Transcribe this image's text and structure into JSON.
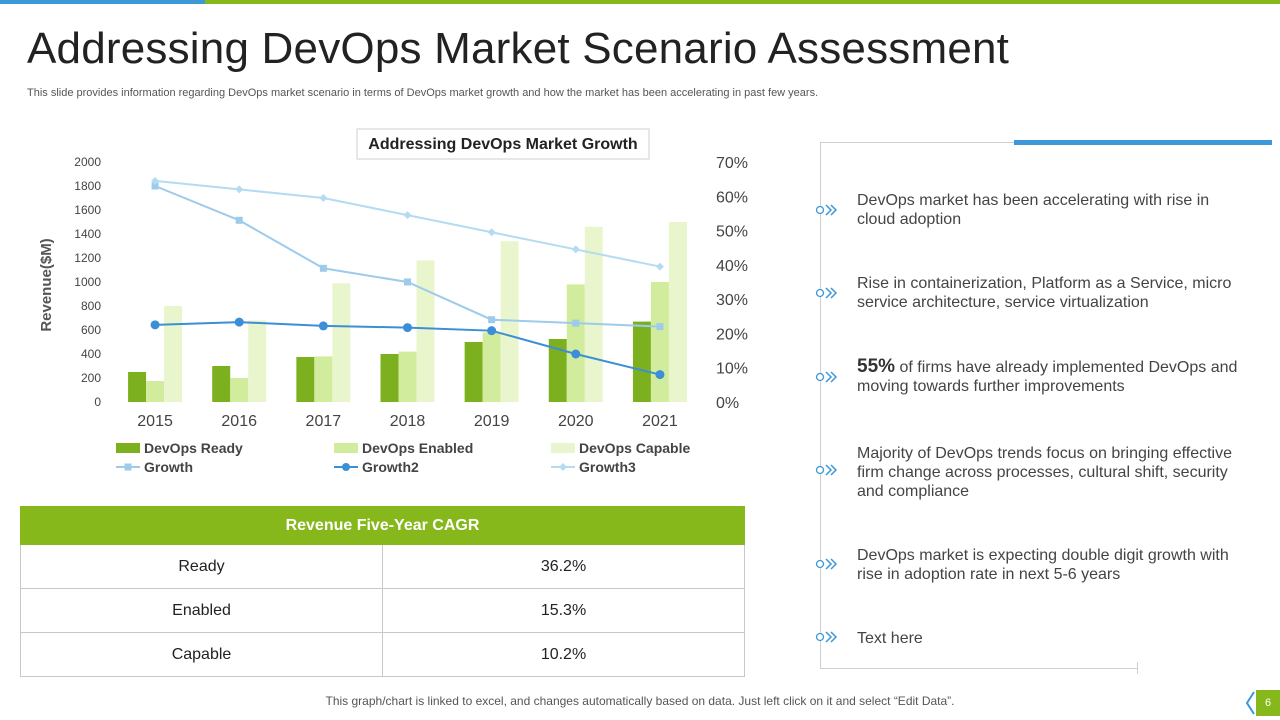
{
  "slide": {
    "title": "Addressing DevOps Market Scenario Assessment",
    "subtitle": "This slide provides information regarding DevOps market scenario in terms of DevOps market growth and how the market has been accelerating in past few years.",
    "footer": "This graph/chart is linked to excel, and changes automatically based on data. Just left click on it and select “Edit Data”.",
    "page_number": "6"
  },
  "colors": {
    "accent_green": "#86b81c",
    "accent_blue": "#3c98d8",
    "devops_ready": "#7cb01e",
    "devops_enabled": "#d2ec9e",
    "devops_capable": "#e9f6cd",
    "growth": "#9dcbeb",
    "growth2": "#3c8fd6",
    "growth3": "#b4dbf2"
  },
  "chart_data": {
    "type": "bar",
    "title": "Addressing DevOps Market Growth",
    "ylabel": "Revenue($M)",
    "categories": [
      "2015",
      "2016",
      "2017",
      "2018",
      "2019",
      "2020",
      "2021"
    ],
    "ylim": [
      0,
      2000
    ],
    "yticks": [
      "0",
      "200",
      "400",
      "600",
      "800",
      "1000",
      "1200",
      "1400",
      "1600",
      "1800",
      "2000"
    ],
    "y2lim": [
      0,
      70
    ],
    "y2ticks": [
      "0%",
      "10%",
      "20%",
      "30%",
      "40%",
      "50%",
      "60%",
      "70%"
    ],
    "grid": false,
    "legend_position": "bottom",
    "series": [
      {
        "name": "DevOps Ready",
        "kind": "bar",
        "axis": "left",
        "values": [
          250,
          300,
          375,
          400,
          500,
          525,
          670
        ]
      },
      {
        "name": "DevOps Enabled",
        "kind": "bar",
        "axis": "left",
        "values": [
          175,
          200,
          380,
          420,
          580,
          980,
          1000
        ]
      },
      {
        "name": "DevOps Capable",
        "kind": "bar",
        "axis": "left",
        "values": [
          800,
          680,
          990,
          1180,
          1340,
          1460,
          1500
        ]
      },
      {
        "name": "Growth",
        "kind": "line",
        "marker": "square",
        "axis": "right",
        "values": [
          63,
          53,
          39,
          35,
          24,
          23,
          22
        ]
      },
      {
        "name": "Growth2",
        "kind": "line",
        "marker": "circle",
        "axis": "right",
        "values": [
          22.5,
          23.3,
          22.2,
          21.7,
          20.8,
          14,
          8
        ]
      },
      {
        "name": "Growth3",
        "kind": "line",
        "marker": "diamond",
        "axis": "right",
        "values": [
          64.5,
          62,
          59.5,
          54.5,
          49.5,
          44.5,
          39.5
        ]
      }
    ]
  },
  "cagr_table": {
    "header": "Revenue Five-Year CAGR",
    "rows": [
      {
        "label": "Ready",
        "value": "36.2%"
      },
      {
        "label": "Enabled",
        "value": "15.3%"
      },
      {
        "label": "Capable",
        "value": "10.2%"
      }
    ]
  },
  "bullets": {
    "b1": "DevOps market has been accelerating with rise in cloud adoption",
    "b2": "Rise in containerization,  Platform as a Service, micro service architecture,  service virtualization",
    "b3_highlight": "55%",
    "b3_rest": " of firms have already implemented DevOps and moving towards further  improvements",
    "b4": "Majority of DevOps trends focus on bringing effective firm change across processes, cultural  shift,  security and compliance",
    "b5": "DevOps market is expecting double digit growth with rise in adoption rate in next  5-6 years",
    "b6": "Text here"
  }
}
